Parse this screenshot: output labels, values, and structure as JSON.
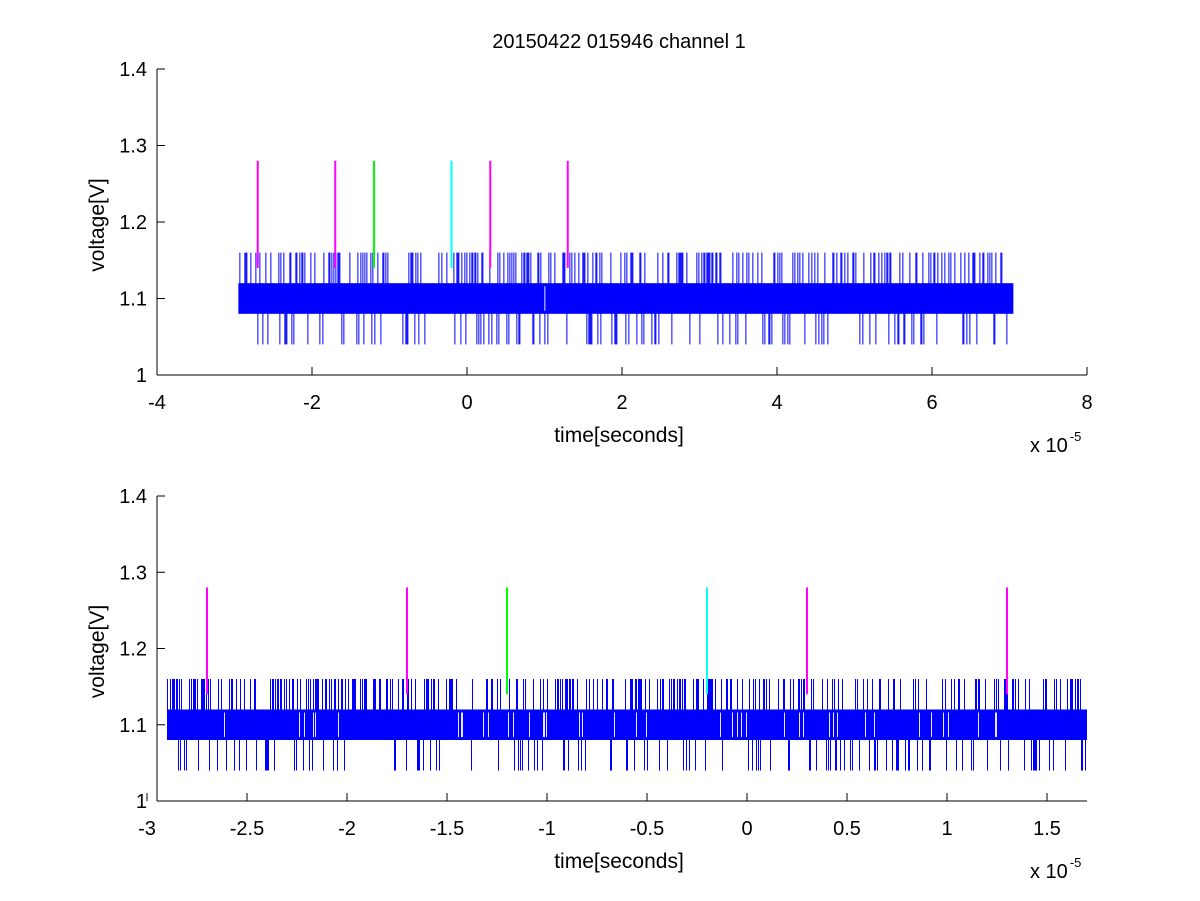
{
  "title": "20150422 015946 channel 1",
  "colors": {
    "signal": "#0000ff",
    "magenta": "#ff00ff",
    "green": "#00ff00",
    "cyan": "#00ffff",
    "axis": "#000000"
  },
  "chart_data": [
    {
      "type": "line",
      "xlabel": "time[seconds]",
      "ylabel": "voltage[V]",
      "x_exponent_label": "x 10",
      "x_exponent": "-5",
      "xlim": [
        -4,
        8
      ],
      "ylim": [
        1,
        1.4
      ],
      "x_ticks": [
        -4,
        -2,
        0,
        2,
        4,
        6,
        8
      ],
      "x_tick_labels": [
        "-4",
        "-2",
        "0",
        "2",
        "4",
        "6",
        "8"
      ],
      "y_ticks": [
        1,
        1.1,
        1.2,
        1.3,
        1.4
      ],
      "y_tick_labels": [
        "1",
        "1.1",
        "1.2",
        "1.3",
        "1.4"
      ],
      "signal": {
        "x_range": [
          -2.95,
          7.05
        ],
        "base_band": [
          1.08,
          1.12
        ],
        "spike_levels": [
          1.04,
          1.16
        ]
      },
      "markers": [
        {
          "x": -2.7,
          "y": [
            1.14,
            1.28
          ],
          "color": "#ff00ff"
        },
        {
          "x": -1.7,
          "y": [
            1.14,
            1.28
          ],
          "color": "#ff00ff"
        },
        {
          "x": -1.2,
          "y": [
            1.14,
            1.28
          ],
          "color": "#00ff00"
        },
        {
          "x": -0.2,
          "y": [
            1.14,
            1.28
          ],
          "color": "#00ffff"
        },
        {
          "x": 0.3,
          "y": [
            1.14,
            1.28
          ],
          "color": "#ff00ff"
        },
        {
          "x": 1.3,
          "y": [
            1.14,
            1.28
          ],
          "color": "#ff00ff"
        }
      ]
    },
    {
      "type": "line",
      "xlabel": "time[seconds]",
      "ylabel": "voltage[V]",
      "x_exponent_label": "x 10",
      "x_exponent": "-5",
      "xlim": [
        -2.95,
        1.7
      ],
      "ylim": [
        1,
        1.4
      ],
      "x_ticks": [
        -3,
        -2.5,
        -2,
        -1.5,
        -1,
        -0.5,
        0,
        0.5,
        1,
        1.5
      ],
      "x_tick_labels": [
        "-3",
        "-2.5",
        "-2",
        "-1.5",
        "-1",
        "-0.5",
        "0",
        "0.5",
        "1",
        "1.5"
      ],
      "y_ticks": [
        1,
        1.1,
        1.2,
        1.3,
        1.4
      ],
      "y_tick_labels": [
        "1",
        "1.1",
        "1.2",
        "1.3",
        "1.4"
      ],
      "signal": {
        "x_range": [
          -2.9,
          1.7
        ],
        "base_band": [
          1.08,
          1.12
        ],
        "spike_levels": [
          1.04,
          1.16
        ]
      },
      "markers": [
        {
          "x": -2.7,
          "y": [
            1.14,
            1.28
          ],
          "color": "#ff00ff"
        },
        {
          "x": -1.7,
          "y": [
            1.14,
            1.28
          ],
          "color": "#ff00ff"
        },
        {
          "x": -1.2,
          "y": [
            1.14,
            1.28
          ],
          "color": "#00ff00"
        },
        {
          "x": -0.2,
          "y": [
            1.14,
            1.28
          ],
          "color": "#00ffff"
        },
        {
          "x": 0.3,
          "y": [
            1.14,
            1.28
          ],
          "color": "#ff00ff"
        },
        {
          "x": 1.3,
          "y": [
            1.14,
            1.28
          ],
          "color": "#ff00ff"
        }
      ]
    }
  ]
}
